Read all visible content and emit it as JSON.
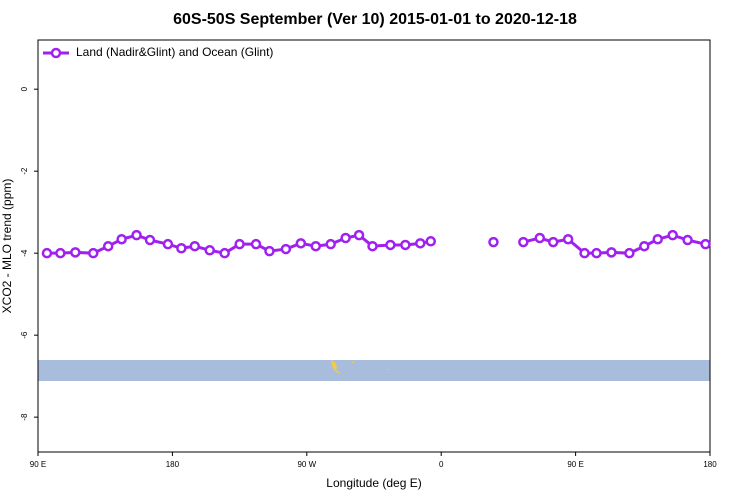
{
  "chart_data": {
    "type": "line",
    "title": "60S-50S September (Ver 10)   2015-01-01 to 2020-12-18",
    "xlabel": "Longitude (deg E)",
    "ylabel": "XCO2 - MLO trend (ppm)",
    "xlim": [
      90,
      540
    ],
    "xticks": [
      {
        "value": 90,
        "label": "90 E"
      },
      {
        "value": 180,
        "label": "180"
      },
      {
        "value": 270,
        "label": "90 W"
      },
      {
        "value": 360,
        "label": "0"
      },
      {
        "value": 450,
        "label": "90 E"
      },
      {
        "value": 540,
        "label": "180"
      }
    ],
    "ylim": [
      -8.85,
      1.2
    ],
    "yticks": [
      0,
      -2,
      -4,
      -6,
      -8
    ],
    "legend": "upper left",
    "x": [
      96,
      105,
      115,
      127,
      137,
      146,
      156,
      165,
      177,
      186,
      195,
      205,
      215,
      225,
      236,
      245,
      256,
      266,
      276,
      286,
      296,
      305,
      314,
      326,
      336,
      346,
      353,
      370,
      395,
      405,
      415,
      426,
      435,
      445,
      456,
      464,
      474,
      486,
      496,
      505,
      515,
      525,
      537
    ],
    "series": [
      {
        "name": "Land (Nadir&Glint) and Ocean (Glint)",
        "color": "#a020f0",
        "values": [
          -4.0,
          -4.0,
          -3.98,
          -4.0,
          -3.83,
          -3.66,
          -3.56,
          -3.68,
          -3.78,
          -3.88,
          -3.83,
          -3.93,
          -4.0,
          -3.78,
          -3.78,
          -3.95,
          -3.9,
          -3.76,
          -3.83,
          -3.78,
          -3.63,
          -3.56,
          -3.83,
          -3.8,
          -3.8,
          -3.76,
          -3.71,
          null,
          -3.73,
          null,
          -3.73,
          -3.63,
          -3.73,
          -3.66,
          -4.0,
          -4.0,
          -3.98,
          -4.0,
          -3.83,
          -3.66,
          -3.56,
          -3.68,
          -3.78
        ]
      }
    ]
  }
}
